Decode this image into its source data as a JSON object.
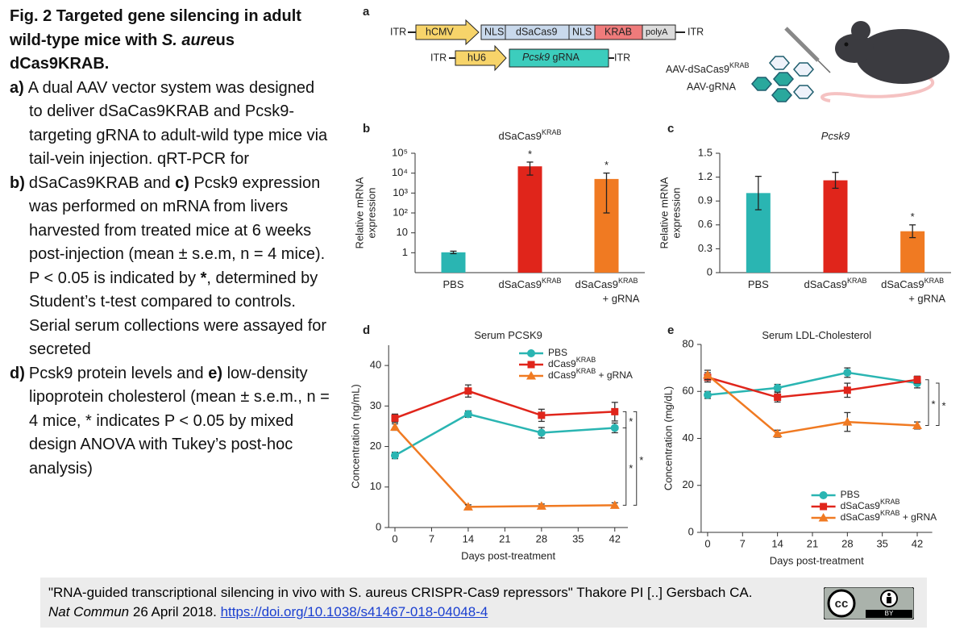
{
  "caption": {
    "title": [
      {
        "text": "Fig. 2 Targeted gene silencing in adult wild-type mice with "
      },
      {
        "text": "S. aure",
        "italic": true
      },
      {
        "text": "us dCas9KRAB."
      }
    ],
    "items": [
      {
        "label": "a)",
        "parts": [
          {
            "text": "A dual AAV vector system was designed to deliver dSaCas9KRAB and Pcsk9-targeting gRNA to adult-wild type mice via tail-vein injection. qRT-PCR for"
          }
        ]
      },
      {
        "label": "b)",
        "parts": [
          {
            "text": "dSaCas9KRAB and "
          },
          {
            "text": "c)",
            "bold": true
          },
          {
            "text": " Pcsk9 expression was performed on mRNA from livers harvested from treated mice at 6 weeks post-injection (mean ± s.e.m, n = 4 mice). P < 0.05 is indicated by "
          },
          {
            "text": "*",
            "bold": true
          },
          {
            "text": ", determined by Student’s t-test compared to controls. Serial serum collections were assayed for secreted"
          }
        ]
      },
      {
        "label": "d)",
        "parts": [
          {
            "text": "Pcsk9 protein levels and "
          },
          {
            "text": "e)",
            "bold": true
          },
          {
            "text": " low-density lipoprotein cholesterol (mean ± s.e.m., n = 4 mice, * indicates P < 0.05 by mixed design ANOVA with Tukey’s post-hoc analysis)"
          }
        ]
      }
    ]
  },
  "diagram": {
    "panel": "a",
    "row1": [
      "ITR",
      "hCMV",
      "NLS",
      "dSaCas9",
      "NLS",
      "KRAB",
      "polyA",
      "ITR"
    ],
    "row2": [
      "ITR",
      "hU6",
      {
        "italic": "Pcsk9",
        "text": " gRNA"
      },
      "ITR"
    ],
    "vectors": [
      {
        "text": "AAV-dSaCas9",
        "sup": "KRAB"
      },
      {
        "text": "AAV-gRNA"
      }
    ]
  },
  "chart_data": [
    {
      "type": "bar",
      "panel": "b",
      "title": {
        "text": "dSaCas9",
        "sup": "KRAB"
      },
      "ylabel": [
        "Relative mRNA",
        "expression"
      ],
      "categories": [
        {
          "text": "PBS"
        },
        {
          "text": "dSaCas9",
          "sup": "KRAB"
        },
        {
          "text": "dSaCas9",
          "sup": "KRAB",
          "line2": "+ gRNA"
        }
      ],
      "values": [
        1.05,
        22000,
        5100
      ],
      "errors": [
        0.15,
        14000,
        5000
      ],
      "significance": [
        null,
        "*",
        "*"
      ],
      "colors": [
        "#2ab5b2",
        "#e0251b",
        "#f07a22"
      ],
      "log_scale": true,
      "ylim": [
        0.1,
        100000
      ],
      "yticks": [
        1,
        10,
        {
          "value": 100,
          "label": "10²"
        },
        {
          "value": 1000,
          "label": "10³"
        },
        {
          "value": 10000,
          "label": "10⁴"
        },
        {
          "value": 100000,
          "label": "10⁵"
        }
      ]
    },
    {
      "type": "bar",
      "panel": "c",
      "title": {
        "italic": "Pcsk9"
      },
      "ylabel": [
        "Relative mRNA",
        "expression"
      ],
      "categories": [
        {
          "text": "PBS"
        },
        {
          "text": "dSaCas9",
          "sup": "KRAB"
        },
        {
          "text": "dSaCas9",
          "sup": "KRAB",
          "line2": "+ gRNA"
        }
      ],
      "values": [
        1.0,
        1.16,
        0.52
      ],
      "errors": [
        0.21,
        0.1,
        0.08
      ],
      "significance": [
        null,
        null,
        "*"
      ],
      "colors": [
        "#2ab5b2",
        "#e0251b",
        "#f07a22"
      ],
      "log_scale": false,
      "ylim": [
        0,
        1.5
      ],
      "yticks": [
        0,
        0.3,
        0.6,
        0.9,
        1.2,
        1.5
      ]
    },
    {
      "type": "line",
      "panel": "d",
      "title": {
        "text": "Serum PCSK9"
      },
      "xlabel": "Days post-treatment",
      "ylabel": "Concentration (ng/mL)",
      "x": [
        0,
        14,
        28,
        42
      ],
      "xlim": [
        -1.2,
        44.5
      ],
      "xticks": [
        0,
        7,
        14,
        21,
        28,
        35,
        42
      ],
      "ylim": [
        0,
        45
      ],
      "yticks": [
        0,
        10,
        20,
        30,
        40
      ],
      "legend": "upper right",
      "series": [
        {
          "name": {
            "text": "PBS"
          },
          "color": "#2ab5b2",
          "marker": "circle",
          "values": [
            17.8,
            28,
            23.4,
            24.6
          ],
          "errors": [
            0.8,
            0.8,
            1.3,
            1.2
          ]
        },
        {
          "name": {
            "text": "dCas9",
            "sup": "KRAB"
          },
          "color": "#e0251b",
          "marker": "square",
          "values": [
            27,
            33.7,
            27.7,
            28.6
          ],
          "errors": [
            1,
            1.5,
            1.5,
            2.3
          ]
        },
        {
          "name": {
            "text": "dCas9",
            "sup": "KRAB",
            "suffix": " + gRNA"
          },
          "color": "#f07a22",
          "marker": "triangle",
          "values": [
            24.8,
            5.1,
            5.3,
            5.5
          ],
          "errors": [
            0.8,
            0.5,
            0.5,
            0.6
          ]
        }
      ],
      "brackets": [
        "*",
        "*",
        "*"
      ]
    },
    {
      "type": "line",
      "panel": "e",
      "title": {
        "text": "Serum LDL-Cholesterol"
      },
      "xlabel": "Days post-treatment",
      "ylabel": "Concentration (mg/dL)",
      "x": [
        0,
        14,
        28,
        42
      ],
      "xlim": [
        -1.3,
        45
      ],
      "xticks": [
        0,
        7,
        14,
        21,
        28,
        35,
        42
      ],
      "ylim": [
        0,
        80
      ],
      "yticks": [
        0,
        20,
        40,
        60,
        80
      ],
      "legend": "lower right",
      "series": [
        {
          "name": {
            "text": "PBS"
          },
          "color": "#2ab5b2",
          "marker": "circle",
          "values": [
            58.5,
            61.5,
            68,
            63.5
          ],
          "errors": [
            1.5,
            1.5,
            2,
            2
          ]
        },
        {
          "name": {
            "text": "dSaCas9",
            "sup": "KRAB"
          },
          "color": "#e0251b",
          "marker": "square",
          "values": [
            66,
            57.5,
            60.5,
            65
          ],
          "errors": [
            2,
            2,
            3,
            1.5
          ]
        },
        {
          "name": {
            "text": "dSaCas9",
            "sup": "KRAB",
            "suffix": " + gRNA"
          },
          "color": "#f07a22",
          "marker": "triangle",
          "values": [
            67,
            42,
            47,
            45.5
          ],
          "errors": [
            2,
            1.5,
            4,
            1.5
          ]
        }
      ],
      "brackets": [
        "*",
        "*"
      ]
    }
  ],
  "citation": {
    "text": "\"RNA-guided transcriptional silencing in vivo with S. aureus CRISPR-Cas9 repressors\" Thakore PI [..] Gersbach CA.",
    "journal": "Nat Commun",
    "date": " 26 April 2018. ",
    "doi": "https://doi.org/10.1038/s41467-018-04048-4",
    "license_icon": "cc",
    "license": "BY"
  }
}
